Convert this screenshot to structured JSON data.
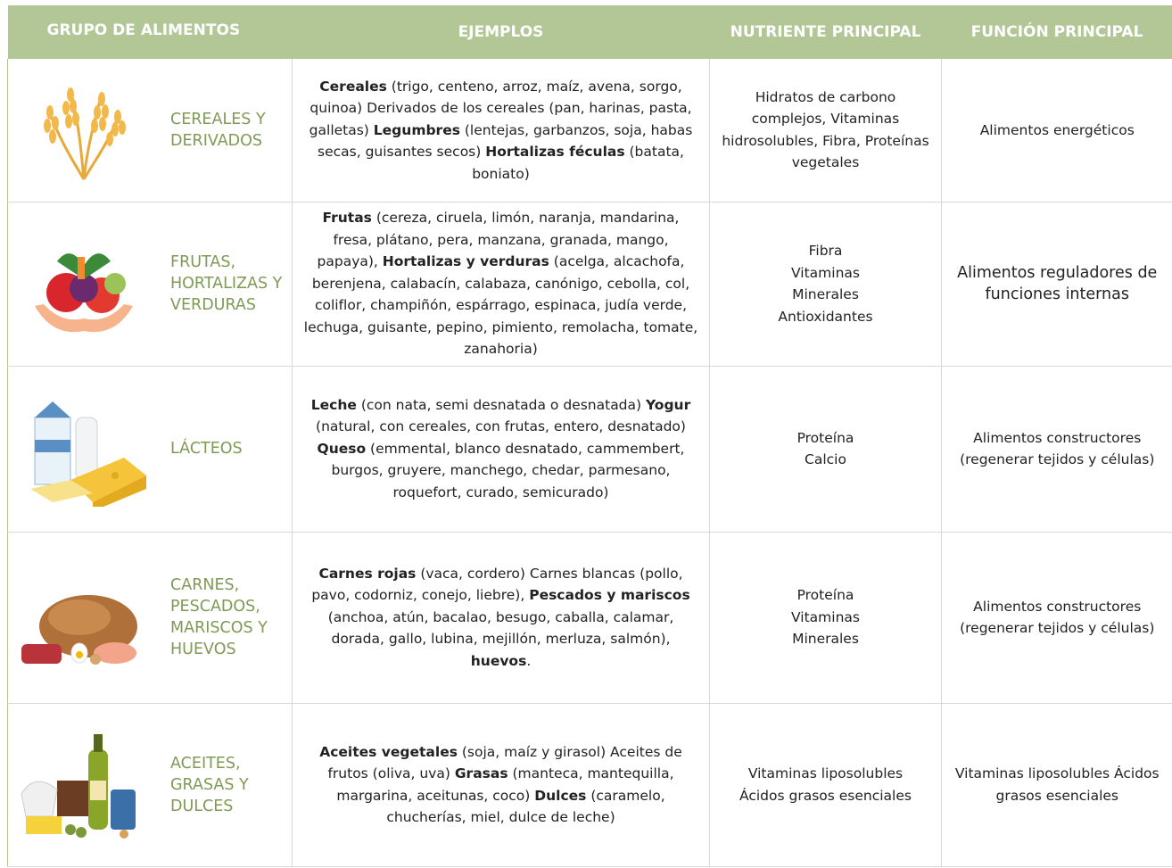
{
  "header": [
    "GRUPO DE ALIMENTOS",
    "EJEMPLOS",
    "NUTRIENTE PRINCIPAL",
    "FUNCIÓN PRINCIPAL"
  ],
  "rows": [
    {
      "group": "CEREALES Y DERIVADOS",
      "examples": [
        {
          "bold": "Cereales"
        },
        {
          "text": " (trigo, centeno, arroz, maíz, avena, sorgo, quinoa) Derivados de los cereales (pan, harinas, pasta, galletas) "
        },
        {
          "bold": "Legumbres"
        },
        {
          "text": " (lentejas, garbanzos, soja, habas secas, guisantes secos) "
        },
        {
          "bold": "Hortalizas féculas"
        },
        {
          "text": " (batata, boniato)"
        }
      ],
      "nutrient": [
        "Hidratos de carbono complejos, Vitaminas hidrosolubles, Fibra, Proteínas vegetales"
      ],
      "function": "Alimentos energéticos"
    },
    {
      "group": "FRUTAS, HORTALIZAS Y VERDURAS",
      "examples": [
        {
          "bold": "Frutas"
        },
        {
          "text": " (cereza, ciruela, limón, naranja, mandarina, fresa, plátano, pera, manzana, granada, mango, papaya), "
        },
        {
          "bold": "Hortalizas y verduras"
        },
        {
          "text": " (acelga, alcachofa, berenjena, calabacín, calabaza, canónigo, cebolla, col, coliflor, champiñón, espárrago, espinaca, judía verde, lechuga, guisante, pepino, pimiento, remolacha, tomate, zanahoria)"
        }
      ],
      "nutrient": [
        "Fibra",
        "Vitaminas",
        "Minerales",
        "Antioxidantes"
      ],
      "function": "Alimentos reguladores de funciones internas"
    },
    {
      "group": "LÁCTEOS",
      "examples": [
        {
          "bold": "Leche"
        },
        {
          "text": " (con nata, semi desnatada o desnatada) "
        },
        {
          "bold": "Yogur"
        },
        {
          "text": " (natural, con cereales, con frutas, entero, desnatado) "
        },
        {
          "bold": "Queso"
        },
        {
          "text": " (emmental, blanco desnatado, cammembert, burgos, gruyere, manchego, chedar, parmesano, roquefort, curado, semicurado)"
        }
      ],
      "nutrient": [
        "Proteína",
        "Calcio"
      ],
      "function": "Alimentos constructores (regenerar tejidos y células)"
    },
    {
      "group": "CARNES, PESCADOS, MARISCOS Y HUEVOS",
      "examples": [
        {
          "bold": "Carnes rojas"
        },
        {
          "text": " (vaca, cordero) Carnes blancas (pollo, pavo, codorniz, conejo, liebre), "
        },
        {
          "bold": "Pescados y mariscos"
        },
        {
          "text": " (anchoa, atún, bacalao, besugo, caballa, calamar, dorada, gallo, lubina, mejillón, merluza, salmón), "
        },
        {
          "bold": "huevos"
        },
        {
          "text": "."
        }
      ],
      "nutrient": [
        "Proteína",
        "Vitaminas",
        "Minerales"
      ],
      "function": "Alimentos constructores (regenerar tejidos y células)"
    },
    {
      "group": "ACEITES, GRASAS Y DULCES",
      "examples": [
        {
          "bold": "Aceites vegetales"
        },
        {
          "text": " (soja, maíz y girasol) Aceites de frutos (oliva, uva) "
        },
        {
          "bold": "Grasas"
        },
        {
          "text": " (manteca, mantequilla, margarina, aceitunas, coco) "
        },
        {
          "bold": "Dulces"
        },
        {
          "text": " (caramelo, chucherías, miel, dulce de leche)"
        }
      ],
      "nutrient": [
        "Vitaminas liposolubles",
        "Ácidos grasos esenciales"
      ],
      "function": "Vitaminas liposolubles Ácidos grasos esenciales"
    }
  ]
}
